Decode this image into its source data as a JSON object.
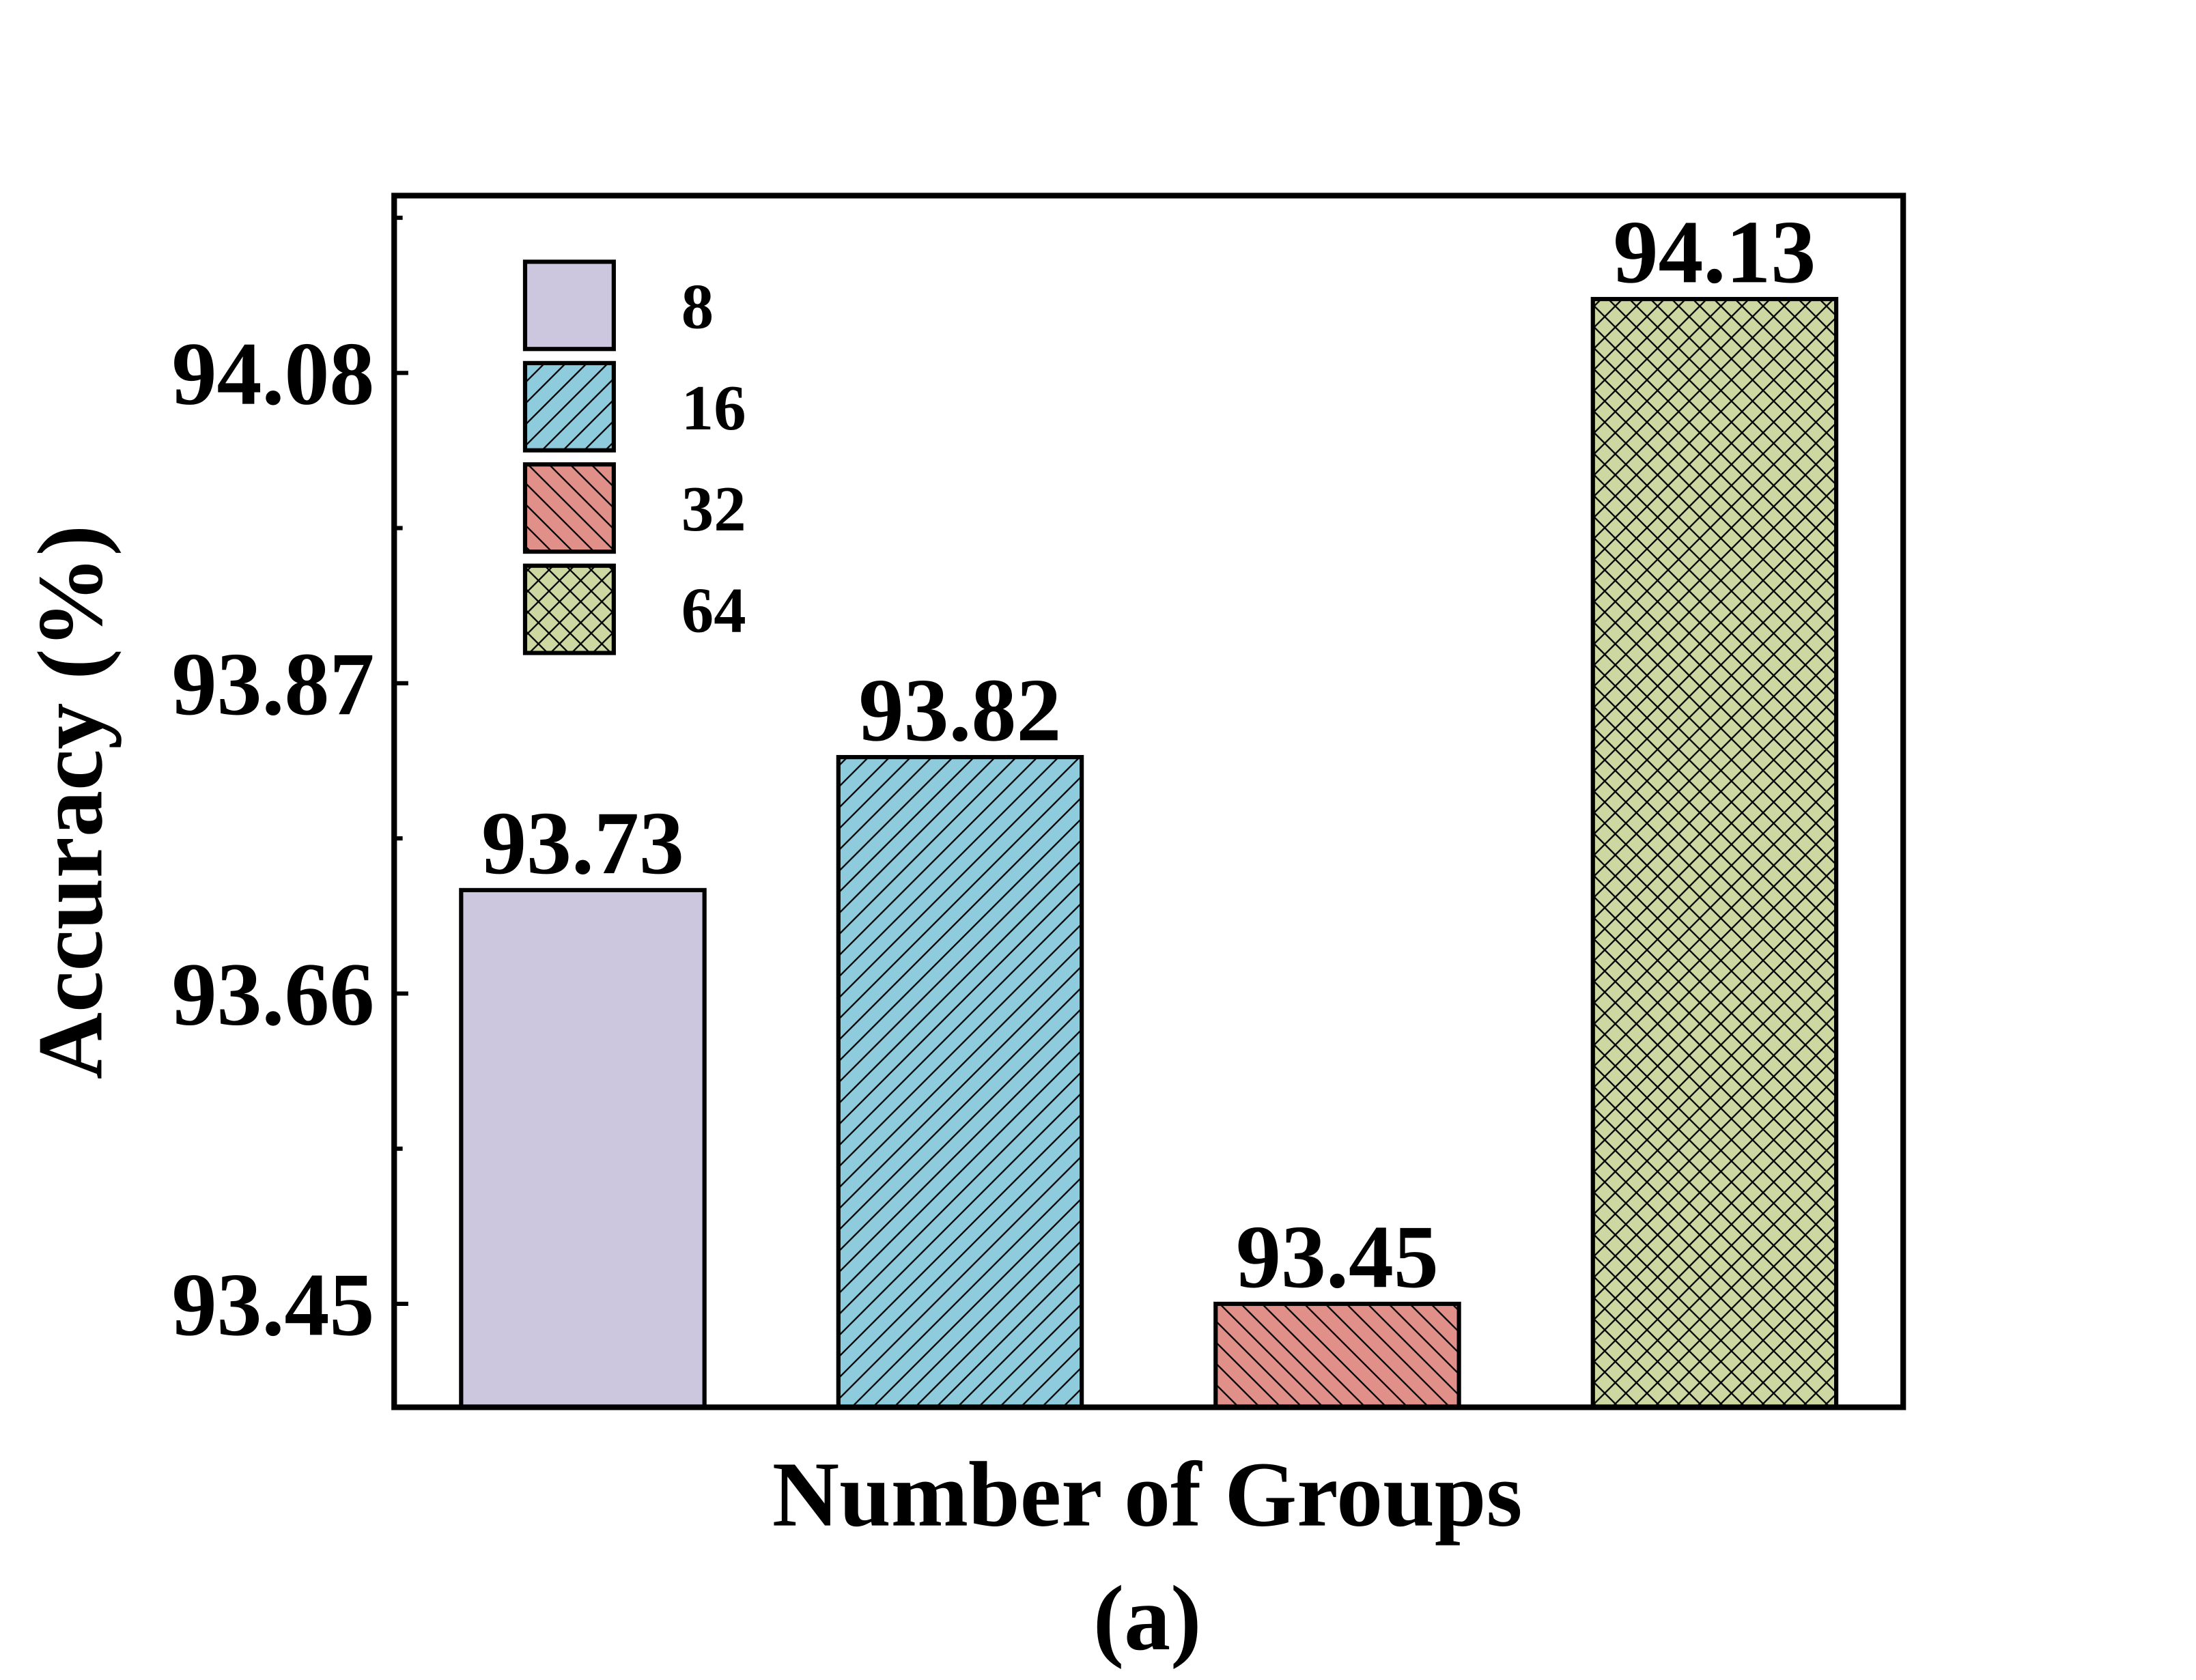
{
  "chart_data": {
    "type": "bar",
    "y_label": "Accuracy (%)",
    "x_label": "Number of Groups",
    "caption": "(a)",
    "categories": [
      null,
      null,
      null,
      null
    ],
    "series": [
      {
        "name": "8",
        "color": "#cdc6df",
        "hatch": "none",
        "values": [
          93.73,
          null,
          null,
          null
        ]
      },
      {
        "name": "16",
        "color": "#8ecbdc",
        "hatch": "/",
        "values": [
          null,
          93.82,
          null,
          null
        ]
      },
      {
        "name": "32",
        "color": "#e09089",
        "hatch": "\\",
        "values": [
          null,
          null,
          93.45,
          null
        ]
      },
      {
        "name": "64",
        "color": "#cdd7a2",
        "hatch": "x",
        "values": [
          null,
          null,
          null,
          94.13
        ]
      }
    ],
    "ylim": [
      93.38,
      94.2
    ],
    "yticks": [
      93.45,
      93.66,
      93.87,
      94.08
    ],
    "legend": "upper left",
    "grid": false
  }
}
